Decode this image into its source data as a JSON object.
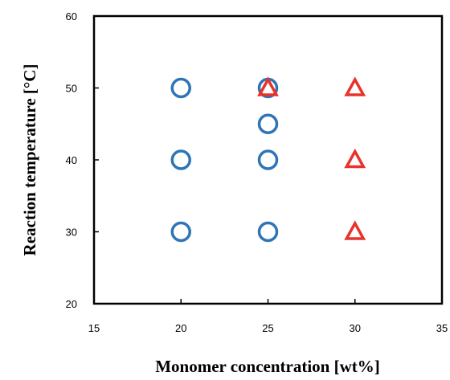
{
  "chart_data": {
    "type": "scatter",
    "xlabel": "Monomer concentration [wt%]",
    "ylabel": "Reaction temperature  [°C]",
    "xlim": [
      15,
      35
    ],
    "ylim": [
      20,
      60
    ],
    "xticks": [
      "15",
      "20",
      "25",
      "30",
      "35"
    ],
    "yticks": [
      "20",
      "30",
      "40",
      "50",
      "60"
    ],
    "grid": false,
    "series": [
      {
        "marker": "circle",
        "color": "#2e75b6",
        "points": [
          {
            "x": 20,
            "y": 30
          },
          {
            "x": 20,
            "y": 40
          },
          {
            "x": 20,
            "y": 50
          },
          {
            "x": 25,
            "y": 30
          },
          {
            "x": 25,
            "y": 40
          },
          {
            "x": 25,
            "y": 45
          },
          {
            "x": 25,
            "y": 50
          }
        ]
      },
      {
        "marker": "triangle",
        "color": "#e8322b",
        "points": [
          {
            "x": 25,
            "y": 50
          },
          {
            "x": 30,
            "y": 50
          },
          {
            "x": 30,
            "y": 40
          },
          {
            "x": 30,
            "y": 30
          }
        ]
      }
    ]
  }
}
